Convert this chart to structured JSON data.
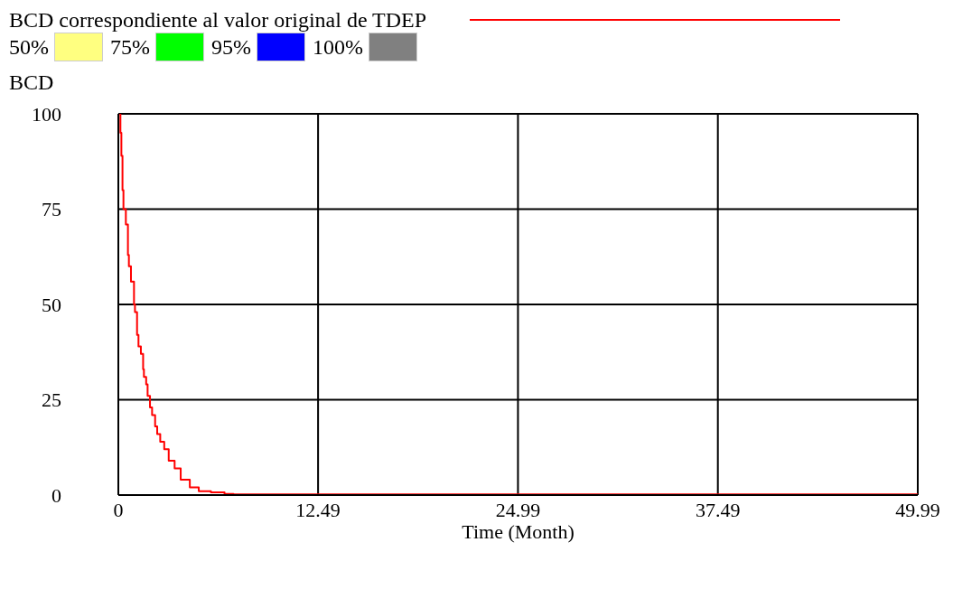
{
  "chart_data": {
    "type": "step",
    "xlabel": "Time (Month)",
    "ylabel": "BCD",
    "x": [
      0,
      0.13,
      0.19,
      0.26,
      0.32,
      0.47,
      0.6,
      0.66,
      0.79,
      0.98,
      1.04,
      1.17,
      1.26,
      1.41,
      1.55,
      1.6,
      1.74,
      1.83,
      1.98,
      2.11,
      2.3,
      2.43,
      2.62,
      2.87,
      3.15,
      3.52,
      3.9,
      4.47,
      5.03,
      5.79,
      6.64,
      7.2,
      49.99
    ],
    "series": [
      {
        "name": "BCD correspondiente al valor original de TDEP",
        "color": "#ff0000",
        "values": [
          100,
          95,
          89,
          80,
          75,
          71,
          63,
          60,
          56,
          50,
          48,
          42,
          39,
          37,
          33,
          31,
          29,
          26,
          23,
          21,
          18,
          16,
          14,
          12,
          9,
          7,
          4,
          2,
          1,
          0.7,
          0.3,
          0.2,
          0.2
        ]
      },
      {
        "name": "50%",
        "type": "area",
        "color": "#ffff80",
        "values": [
          null,
          null,
          null,
          null,
          null,
          null,
          null,
          null,
          null,
          null,
          null,
          null,
          null,
          null,
          null,
          null,
          null,
          null,
          null,
          null,
          null,
          null,
          null,
          null,
          null,
          null,
          null,
          null,
          null,
          null,
          null,
          null,
          null
        ]
      },
      {
        "name": "75%",
        "type": "area",
        "color": "#00ff00",
        "values": [
          null,
          null,
          null,
          null,
          null,
          null,
          null,
          null,
          null,
          null,
          null,
          null,
          null,
          null,
          null,
          null,
          null,
          null,
          null,
          null,
          null,
          null,
          null,
          null,
          null,
          null,
          null,
          null,
          null,
          null,
          null,
          null,
          null
        ]
      },
      {
        "name": "95%",
        "type": "area",
        "color": "#0000ff",
        "values": [
          null,
          null,
          null,
          null,
          null,
          null,
          null,
          null,
          null,
          null,
          null,
          null,
          null,
          null,
          null,
          null,
          null,
          null,
          null,
          null,
          null,
          null,
          null,
          null,
          null,
          null,
          null,
          null,
          null,
          null,
          null,
          null,
          null
        ]
      },
      {
        "name": "100%",
        "type": "area",
        "color": "#808080",
        "values": [
          null,
          null,
          null,
          null,
          null,
          null,
          null,
          null,
          null,
          null,
          null,
          null,
          null,
          null,
          null,
          null,
          null,
          null,
          null,
          null,
          null,
          null,
          null,
          null,
          null,
          null,
          null,
          null,
          null,
          null,
          null,
          null,
          null
        ]
      }
    ],
    "xlim": [
      0,
      49.99
    ],
    "xticks": [
      0,
      12.49,
      24.99,
      37.49,
      49.99
    ],
    "ylim": [
      0,
      100
    ],
    "yticks": [
      0,
      25,
      50,
      75,
      100
    ],
    "grid": true,
    "legend": "top"
  }
}
